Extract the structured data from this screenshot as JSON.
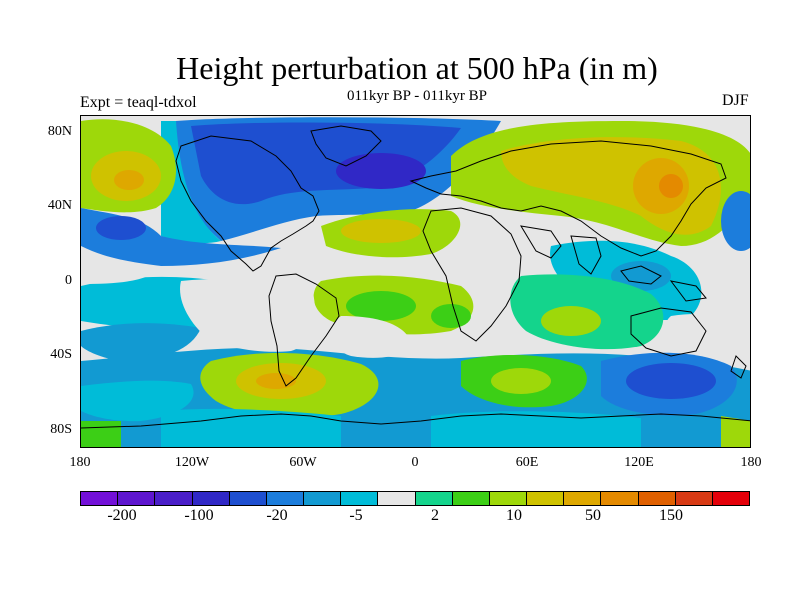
{
  "title": "Height perturbation at 500 hPa (in m)",
  "subtitle": "011kyr BP - 011kyr BP",
  "left_label": "Expt = teaql-tdxol",
  "right_label": "DJF",
  "lat_ticks": [
    "80N",
    "40N",
    "0",
    "40S",
    "80S"
  ],
  "lon_ticks": [
    "180",
    "120W",
    "60W",
    "0",
    "60E",
    "120E",
    "180"
  ],
  "colorbar": {
    "colors": [
      "#7310d8",
      "#5e16cf",
      "#4a1ec8",
      "#3028c6",
      "#1e4fd0",
      "#1c7ddc",
      "#129ad2",
      "#00bcd8",
      "#e6e6e6",
      "#14d48c",
      "#3ccf16",
      "#9ed80a",
      "#cfc200",
      "#dea800",
      "#e48a00",
      "#e06000",
      "#d83a14",
      "#e4000a"
    ],
    "labels": [
      "-200",
      "-100",
      "-20",
      "-5",
      "2",
      "10",
      "50",
      "150"
    ]
  }
}
